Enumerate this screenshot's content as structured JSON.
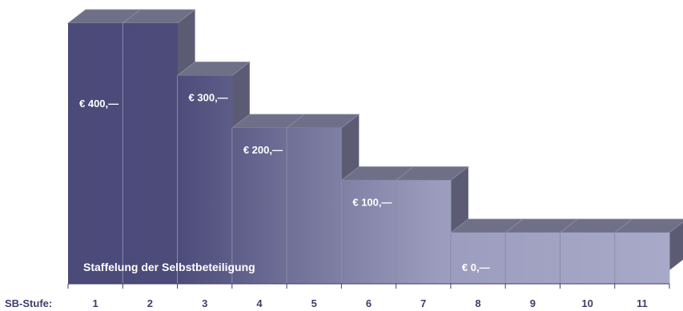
{
  "chart_data": {
    "type": "bar",
    "subtitle": "Staffelung der Selbstbeteiligung",
    "xlabel": "SB-Stufe:",
    "categories": [
      "1",
      "2",
      "3",
      "4",
      "5",
      "6",
      "7",
      "8",
      "9",
      "10",
      "11"
    ],
    "values": [
      400,
      400,
      300,
      200,
      200,
      100,
      100,
      0,
      0,
      0,
      0
    ],
    "value_labels": [
      {
        "from": 1,
        "to": 2,
        "text": "€ 400,—"
      },
      {
        "from": 3,
        "to": 3,
        "text": "€ 300,—"
      },
      {
        "from": 4,
        "to": 5,
        "text": "€ 200,—"
      },
      {
        "from": 6,
        "to": 7,
        "text": "€ 100,—"
      },
      {
        "from": 8,
        "to": 11,
        "text": "€ 0,—"
      }
    ],
    "ylim": [
      0,
      400
    ],
    "grid": false,
    "colors": {
      "dark": "#4b4a79",
      "light": "#a7a8c7",
      "top_face": "#6f7088",
      "side_face": "#5b5c74",
      "axis": "#3d3e6e",
      "divider": "#8a8ba8"
    }
  }
}
